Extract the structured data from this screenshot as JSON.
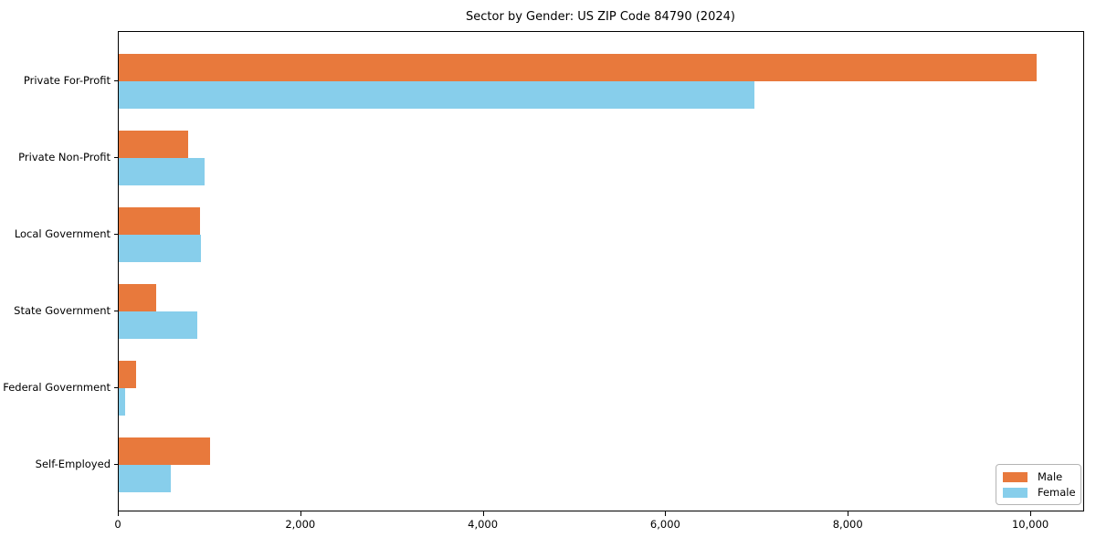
{
  "chart_data": {
    "type": "bar",
    "orientation": "horizontal",
    "title": "Sector by Gender: US ZIP Code 84790 (2024)",
    "categories": [
      "Private For-Profit",
      "Private Non-Profit",
      "Local Government",
      "State Government",
      "Federal Government",
      "Self-Employed"
    ],
    "series": [
      {
        "name": "Male",
        "color": "#e8793c",
        "values": [
          10060,
          760,
          890,
          405,
          185,
          1000
        ]
      },
      {
        "name": "Female",
        "color": "#87ceeb",
        "values": [
          6970,
          940,
          905,
          865,
          70,
          570
        ]
      }
    ],
    "xlim": [
      0,
      10570
    ],
    "xticks": [
      0,
      2000,
      4000,
      6000,
      8000,
      10000
    ],
    "xtick_labels": [
      "0",
      "2,000",
      "4,000",
      "6,000",
      "8,000",
      "10,000"
    ],
    "xlabel": "",
    "ylabel": "",
    "grid": false,
    "legend_position": "lower right",
    "frame": true
  }
}
